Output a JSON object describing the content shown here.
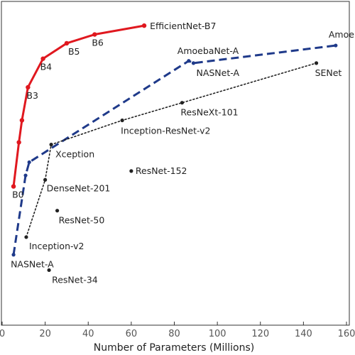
{
  "chart_data": {
    "type": "scatter",
    "title": "",
    "xlabel": "Number of Parameters (Millions)",
    "ylabel": "",
    "xlim": [
      0,
      160
    ],
    "ylim": [
      70.8,
      85.5
    ],
    "xticks": [
      0,
      20,
      40,
      60,
      80,
      100,
      120,
      140,
      160
    ],
    "grid": false,
    "series": [
      {
        "key": "efficientnet",
        "color": "#e0181f",
        "style": "solid",
        "points": [
          {
            "label": "B0",
            "x": 5.3,
            "y": 77.1
          },
          {
            "label": "",
            "x": 7.8,
            "y": 79.1
          },
          {
            "label": "",
            "x": 9.2,
            "y": 80.1
          },
          {
            "label": "B3",
            "x": 12,
            "y": 81.6
          },
          {
            "label": "B4",
            "x": 19,
            "y": 82.9
          },
          {
            "label": "B5",
            "x": 30,
            "y": 83.6
          },
          {
            "label": "B6",
            "x": 43,
            "y": 84.0
          },
          {
            "label": "EfficientNet-B7",
            "x": 66,
            "y": 84.4
          }
        ]
      },
      {
        "key": "nas",
        "color": "#1f3a8a",
        "style": "dashed",
        "points": [
          {
            "label": "NASNet-A",
            "x": 5.3,
            "y": 74.0
          },
          {
            "label": "",
            "x": 10.9,
            "y": 77.6
          },
          {
            "label": "",
            "x": 12.6,
            "y": 78.2
          },
          {
            "label": "AmoebaNet-A",
            "x": 86.7,
            "y": 82.8
          },
          {
            "label": "NASNet-A",
            "x": 88.9,
            "y": 82.7
          },
          {
            "label": "AmoebaNet-C",
            "x": 155,
            "y": 83.5
          }
        ]
      },
      {
        "key": "handcrafted",
        "color": "#222222",
        "style": "dotted",
        "points": [
          {
            "label": "Inception-v2",
            "x": 11.2,
            "y": 74.8
          },
          {
            "label": "DenseNet-201",
            "x": 20,
            "y": 77.4
          },
          {
            "label": "Xception",
            "x": 22.8,
            "y": 79.0
          },
          {
            "label": "Inception-ResNet-v2",
            "x": 55.8,
            "y": 80.1
          },
          {
            "label": "ResNeXt-101",
            "x": 83.6,
            "y": 80.9
          },
          {
            "label": "SENet",
            "x": 146,
            "y": 82.7
          }
        ]
      },
      {
        "key": "others",
        "color": "#222222",
        "style": "none",
        "points": [
          {
            "label": "ResNet-34",
            "x": 21.8,
            "y": 73.3
          },
          {
            "label": "ResNet-50",
            "x": 25.6,
            "y": 76.0
          },
          {
            "label": "ResNet-152",
            "x": 60,
            "y": 77.8
          }
        ]
      }
    ],
    "annotations_note": ""
  }
}
